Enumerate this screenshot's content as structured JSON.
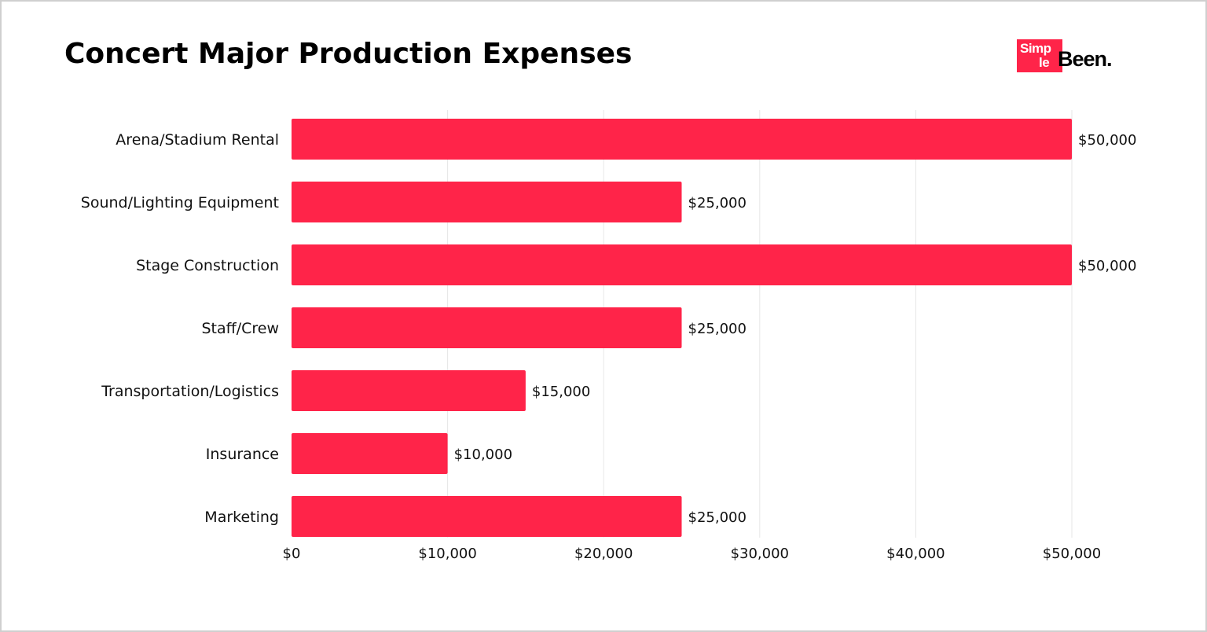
{
  "title": "Concert Major Production Expenses",
  "logo": {
    "part1": "Simp",
    "part2": "le",
    "part3": "Been."
  },
  "colors": {
    "bar": "#ff2449",
    "grid": "#e6e6e6",
    "text": "#111111",
    "frame": "#cfcfcf"
  },
  "chart_data": {
    "type": "bar",
    "orientation": "horizontal",
    "title": "Concert Major Production Expenses",
    "categories": [
      "Arena/Stadium Rental",
      "Sound/Lighting Equipment",
      "Stage Construction",
      "Staff/Crew",
      "Transportation/Logistics",
      "Insurance",
      "Marketing"
    ],
    "values": [
      50000,
      25000,
      50000,
      25000,
      15000,
      10000,
      25000
    ],
    "value_labels": [
      "$50,000",
      "$25,000",
      "$50,000",
      "$25,000",
      "$15,000",
      "$10,000",
      "$25,000"
    ],
    "xlim": [
      0,
      50000
    ],
    "x_ticks": [
      0,
      10000,
      20000,
      30000,
      40000,
      50000
    ],
    "x_tick_labels": [
      "$0",
      "$10,000",
      "$20,000",
      "$30,000",
      "$40,000",
      "$50,000"
    ],
    "grid": "vertical",
    "legend": "none"
  }
}
